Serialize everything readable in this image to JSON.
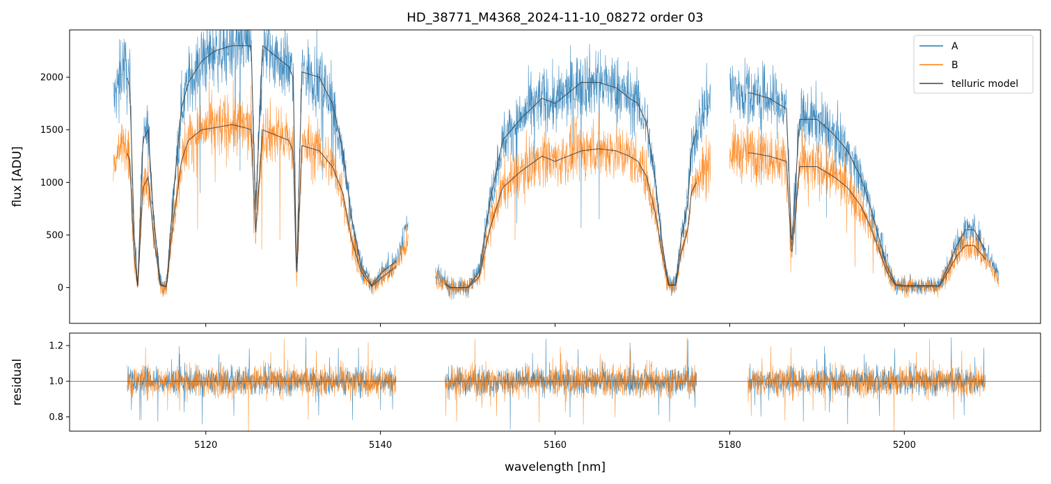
{
  "chart_data": {
    "type": "line",
    "title": "HD_38771_M4368_2024-11-10_08272  order 03",
    "xlabel": "wavelength [nm]",
    "xlim": [
      5104.4,
      5215.6
    ],
    "xticks": [
      5120,
      5140,
      5160,
      5180,
      5200
    ],
    "top_panel": {
      "ylabel": "flux [ADU]",
      "ylim": [
        -340,
        2450
      ],
      "yticks": [
        0,
        500,
        1000,
        1500,
        2000
      ],
      "legend_position": "top-right",
      "segments": [
        {
          "range": [
            5109.4,
            5143.2
          ]
        },
        {
          "range": [
            5146.3,
            5177.8
          ]
        },
        {
          "range": [
            5180.0,
            5210.8
          ]
        }
      ],
      "model_segments": [
        {
          "range": [
            5111.0,
            5141.8
          ]
        },
        {
          "range": [
            5147.4,
            5176.2
          ]
        },
        {
          "range": [
            5182.1,
            5209.3
          ]
        }
      ],
      "series": [
        {
          "name": "A",
          "color": "#1f77b4",
          "envelope": {
            "x": [
              5109.6,
              5110.5,
              5111.3,
              5111.8,
              5112.2,
              5112.8,
              5113.4,
              5114.0,
              5114.8,
              5115.5,
              5116.3,
              5117.2,
              5118.0,
              5119.5,
              5121.0,
              5123.0,
              5124.5,
              5125.2,
              5125.7,
              5126.5,
              5128.0,
              5129.5,
              5130.0,
              5130.4,
              5131.0,
              5133.0,
              5134.5,
              5135.7,
              5136.7,
              5137.8,
              5139.0,
              5140.2,
              5141.0,
              5141.8,
              5143.0,
              5146.5,
              5148.0,
              5150.0,
              5151.3,
              5152.5,
              5154.0,
              5156.0,
              5158.5,
              5160.0,
              5161.5,
              5163.0,
              5165.0,
              5167.0,
              5168.5,
              5169.5,
              5170.5,
              5171.5,
              5172.3,
              5173.0,
              5173.8,
              5174.5,
              5175.2,
              5175.6,
              5176.2,
              5177.5,
              5180.1,
              5181.0,
              5182.5,
              5184.5,
              5186.5,
              5187.1,
              5188.0,
              5190.0,
              5192.0,
              5193.5,
              5195.0,
              5196.0,
              5197.0,
              5198.0,
              5199.0,
              5200.0,
              5202.0,
              5204.0,
              5205.0,
              5206.0,
              5207.0,
              5208.0,
              5209.0,
              5210.0,
              5210.8
            ],
            "y": [
              1800,
              2150,
              1900,
              500,
              10,
              1400,
              1500,
              700,
              30,
              10,
              900,
              1700,
              1950,
              2150,
              2250,
              2300,
              2300,
              2300,
              700,
              2300,
              2200,
              2100,
              2000,
              100,
              2050,
              2000,
              1750,
              1300,
              650,
              200,
              20,
              150,
              200,
              250,
              600,
              100,
              0,
              0,
              150,
              800,
              1400,
              1600,
              1800,
              1750,
              1850,
              1950,
              1950,
              1900,
              1800,
              1750,
              1550,
              1000,
              400,
              30,
              30,
              500,
              800,
              1300,
              1500,
              1800,
              1900,
              1850,
              1850,
              1800,
              1700,
              400,
              1600,
              1600,
              1450,
              1300,
              1050,
              800,
              500,
              200,
              30,
              20,
              20,
              20,
              200,
              400,
              550,
              550,
              400,
              250,
              120
            ]
          }
        },
        {
          "name": "B",
          "color": "#ff7f0e",
          "envelope": {
            "x": [
              5109.6,
              5110.5,
              5111.3,
              5111.8,
              5112.2,
              5112.8,
              5113.4,
              5114.0,
              5114.8,
              5115.5,
              5116.3,
              5117.2,
              5118.0,
              5119.5,
              5121.0,
              5123.0,
              5124.5,
              5125.2,
              5125.7,
              5126.5,
              5128.0,
              5129.5,
              5130.0,
              5130.4,
              5131.0,
              5133.0,
              5134.5,
              5135.7,
              5136.7,
              5137.8,
              5139.0,
              5140.2,
              5141.0,
              5141.8,
              5143.0,
              5146.5,
              5148.0,
              5150.0,
              5151.3,
              5152.5,
              5154.0,
              5156.0,
              5158.5,
              5160.0,
              5161.5,
              5163.0,
              5165.0,
              5167.0,
              5168.5,
              5169.5,
              5170.5,
              5171.5,
              5172.3,
              5173.0,
              5173.8,
              5174.5,
              5175.2,
              5175.6,
              5176.2,
              5177.5,
              5180.1,
              5181.0,
              5182.5,
              5184.5,
              5186.5,
              5187.1,
              5188.0,
              5190.0,
              5192.0,
              5193.5,
              5195.0,
              5196.0,
              5197.0,
              5198.0,
              5199.0,
              5200.0,
              5202.0,
              5204.0,
              5205.0,
              5206.0,
              5207.0,
              5208.0,
              5209.0,
              5210.0,
              5210.8
            ],
            "y": [
              1200,
              1400,
              1200,
              300,
              10,
              950,
              1050,
              500,
              20,
              10,
              650,
              1200,
              1400,
              1500,
              1520,
              1550,
              1520,
              1500,
              500,
              1500,
              1450,
              1400,
              1300,
              60,
              1350,
              1300,
              1150,
              900,
              450,
              150,
              10,
              100,
              150,
              200,
              450,
              80,
              0,
              0,
              100,
              550,
              950,
              1100,
              1250,
              1200,
              1250,
              1300,
              1320,
              1300,
              1250,
              1200,
              1050,
              700,
              300,
              20,
              20,
              350,
              550,
              900,
              1000,
              1200,
              1300,
              1280,
              1280,
              1250,
              1200,
              300,
              1150,
              1150,
              1050,
              950,
              780,
              600,
              380,
              150,
              20,
              10,
              10,
              10,
              150,
              300,
              400,
              400,
              300,
              180,
              80
            ]
          }
        },
        {
          "name": "telluric model",
          "color": "#404040"
        }
      ]
    },
    "bottom_panel": {
      "ylabel": "residual",
      "ylim": [
        0.72,
        1.27
      ],
      "yticks": [
        0.8,
        1.0,
        1.2
      ],
      "reference_line": 1.0,
      "segments": [
        {
          "range": [
            5111.0,
            5141.8
          ]
        },
        {
          "range": [
            5147.4,
            5176.2
          ]
        },
        {
          "range": [
            5182.1,
            5209.3
          ]
        }
      ],
      "series": [
        {
          "name": "A",
          "color": "#1f77b4",
          "center": 1.0,
          "spread": 0.07
        },
        {
          "name": "B",
          "color": "#ff7f0e",
          "center": 1.0,
          "spread": 0.08
        }
      ]
    }
  }
}
